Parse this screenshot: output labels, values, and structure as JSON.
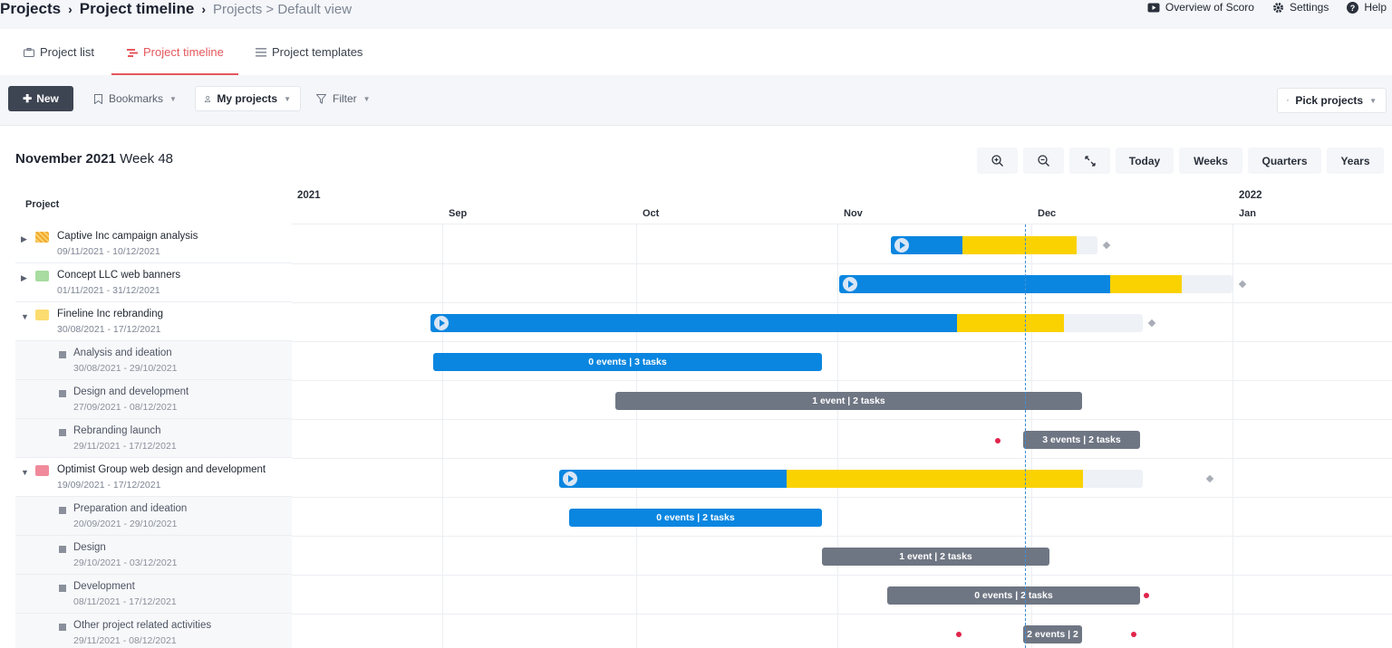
{
  "header": {
    "breadcrumb_root": "Projects",
    "breadcrumb_current": "Project timeline",
    "breadcrumb_view": "Projects > Default view",
    "actions": {
      "overview": "Overview of Scoro",
      "settings": "Settings",
      "help": "Help"
    }
  },
  "tabs": [
    {
      "label": "Project list",
      "icon": "briefcase-icon"
    },
    {
      "label": "Project timeline",
      "icon": "timeline-icon",
      "active": true
    },
    {
      "label": "Project templates",
      "icon": "template-icon"
    }
  ],
  "toolbar": {
    "new_label": "New",
    "bookmarks_label": "Bookmarks",
    "my_projects_label": "My projects",
    "filter_label": "Filter",
    "pick_projects_label": "Pick projects"
  },
  "period": {
    "month": "November 2021",
    "week": "Week 48"
  },
  "view_buttons": {
    "today": "Today",
    "weeks": "Weeks",
    "quarters": "Quarters",
    "years": "Years"
  },
  "grid": {
    "column_header": "Project",
    "years": [
      "2021",
      "2022"
    ],
    "months": [
      "Sep",
      "Oct",
      "Nov",
      "Dec",
      "Jan"
    ]
  },
  "colors": {
    "accent": "#e5575c",
    "done": "#0a86e0",
    "in_progress": "#fad201",
    "remaining": "#eef1f6",
    "phase": "#6f7683",
    "event_dot": "#e0244a"
  },
  "rows": [
    {
      "title": "Captive Inc campaign analysis",
      "dates": "09/11/2021 - 10/12/2021",
      "kind": "project",
      "expander": "▶",
      "icon_color": "#f0a92e"
    },
    {
      "title": "Concept LLC web banners",
      "dates": "01/11/2021 - 31/12/2021",
      "kind": "project",
      "expander": "▶",
      "icon_color": "#a8dca0"
    },
    {
      "title": "Fineline Inc rebranding",
      "dates": "30/08/2021 - 17/12/2021",
      "kind": "project",
      "expander": "▼",
      "icon_color": "#fbdc70"
    },
    {
      "title": "Analysis and ideation",
      "dates": "30/08/2021 - 29/10/2021",
      "kind": "phase",
      "label": "0 events | 3 tasks"
    },
    {
      "title": "Design and development",
      "dates": "27/09/2021 - 08/12/2021",
      "kind": "phase",
      "label": "1 event | 2 tasks"
    },
    {
      "title": "Rebranding launch",
      "dates": "29/11/2021 - 17/12/2021",
      "kind": "phase",
      "label": "3 events | 2 tasks"
    },
    {
      "title": "Optimist Group web design and development",
      "dates": "19/09/2021 - 17/12/2021",
      "kind": "project",
      "expander": "▼",
      "icon_color": "#f08a9b"
    },
    {
      "title": "Preparation and ideation",
      "dates": "20/09/2021 - 29/10/2021",
      "kind": "phase",
      "label": "0 events | 2 tasks"
    },
    {
      "title": "Design",
      "dates": "29/10/2021 - 03/12/2021",
      "kind": "phase",
      "label": "1 event | 2 tasks"
    },
    {
      "title": "Development",
      "dates": "08/11/2021 - 17/12/2021",
      "kind": "phase",
      "label": "0 events | 2 tasks"
    },
    {
      "title": "Other project related activities",
      "dates": "29/11/2021 - 08/12/2021",
      "kind": "phase",
      "label": "2 events | 2"
    }
  ]
}
